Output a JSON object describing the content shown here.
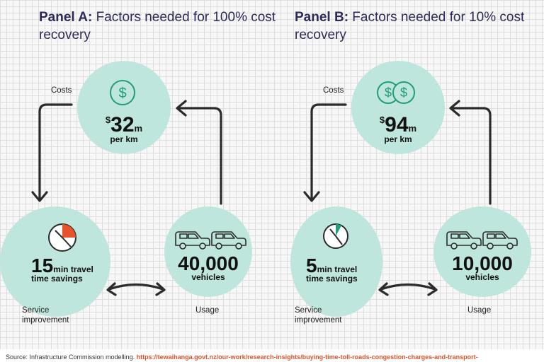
{
  "panel_a": {
    "title_bold": "Panel A:",
    "title_rest": " Factors needed for 100% cost recovery",
    "costs_label": "Costs",
    "cost_currency": "$",
    "cost_value": "32",
    "cost_unit": "m",
    "cost_per": "per km",
    "time_value": "15",
    "time_unit": "min travel",
    "time_desc": "time savings",
    "vehicles_value": "40,000",
    "vehicles_label": "vehicles",
    "service_label_1": "Service",
    "service_label_2": "improvement",
    "usage_label": "Usage",
    "clock_fraction": 0.25
  },
  "panel_b": {
    "title_bold": "Panel B:",
    "title_rest": " Factors needed for 10% cost recovery",
    "costs_label": "Costs",
    "cost_currency": "$",
    "cost_value": "94",
    "cost_unit": "m",
    "cost_per": "per km",
    "time_value": "5",
    "time_unit": "min travel",
    "time_desc": "time savings",
    "vehicles_value": "10,000",
    "vehicles_label": "vehicles",
    "service_label_1": "Service",
    "service_label_2": "improvement",
    "usage_label": "Usage",
    "clock_fraction": 0.083
  },
  "source": {
    "prefix": "Source: Infrastructure Commission modelling. ",
    "link": "https://tewaihanga.govt.nz/our-work/research-insights/buying-time-toll-roads-congestion-charges-and-transport-"
  },
  "colors": {
    "title": "#2d2a5a",
    "circle": "#bfe6dc",
    "arrow": "#2b2b2b",
    "clock_a": "#e8532b",
    "clock_b": "#1f9e7a",
    "icon": "#1f9e7a"
  },
  "icons": [
    "dollar-icon",
    "double-dollar-icon",
    "clock-icon",
    "vehicles-icon",
    "arrow-icon"
  ]
}
